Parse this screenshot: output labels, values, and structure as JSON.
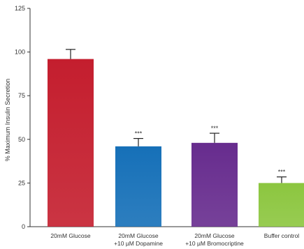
{
  "chart_data": {
    "type": "bar",
    "title": "",
    "xlabel": "",
    "ylabel": "% Maximum Insulin Secretion",
    "ylim": [
      0,
      125
    ],
    "yticks": [
      0,
      25,
      50,
      75,
      100,
      125
    ],
    "categories": [
      [
        "20mM Glucose"
      ],
      [
        "20mM Glucose",
        "+10 µM Dopamine"
      ],
      [
        "20mM Glucose",
        "+10 µM Bromocriptine"
      ],
      [
        "Buffer control"
      ]
    ],
    "values": [
      96,
      46,
      48,
      25
    ],
    "errors": [
      5.5,
      4.5,
      5.5,
      3.5
    ],
    "significance": [
      "",
      "***",
      "***",
      "***"
    ],
    "colors": [
      "#c41e2e",
      "#1670b8",
      "#672c8e",
      "#8cc63f"
    ],
    "grid": false,
    "legend": "none"
  }
}
